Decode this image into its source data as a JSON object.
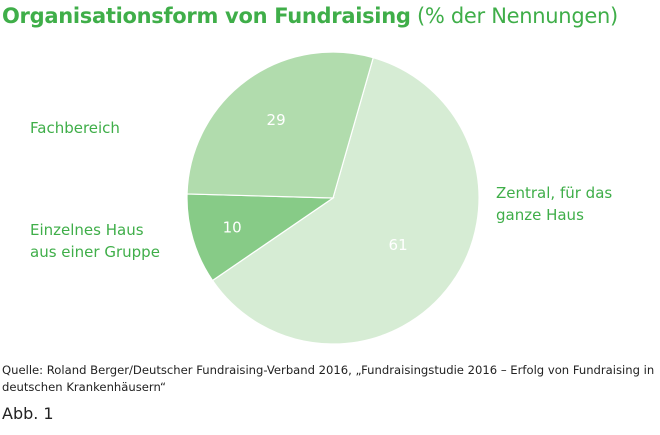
{
  "title": {
    "bold": "Organisationsform von Fundraising",
    "normal": "(% der Nennungen)"
  },
  "chart_data": {
    "type": "pie",
    "title": "Organisationsform von Fundraising (% der Nennungen)",
    "slices": [
      {
        "label": "Zentral, für das ganze Haus",
        "label_lines": [
          "Zentral, für das",
          "ganze Haus"
        ],
        "value": 61,
        "value_label": "61",
        "color": "#d6ecd4"
      },
      {
        "label": "Einzelnes Haus aus einer Gruppe",
        "label_lines": [
          "Einzelnes Haus",
          "aus einer Gruppe"
        ],
        "value": 10,
        "value_label": "10",
        "color": "#87cb87"
      },
      {
        "label": "Fachbereich",
        "label_lines": [
          "Fachbereich"
        ],
        "value": 29,
        "value_label": "29",
        "color": "#b1dcad"
      }
    ]
  },
  "source": "Quelle: Roland Berger/Deutscher Fundraising-Verband 2016, „Fundraisingstudie 2016 – Erfolg von Fundraising in deutschen Krankenhäusern“",
  "figure_label": "Abb. 1"
}
